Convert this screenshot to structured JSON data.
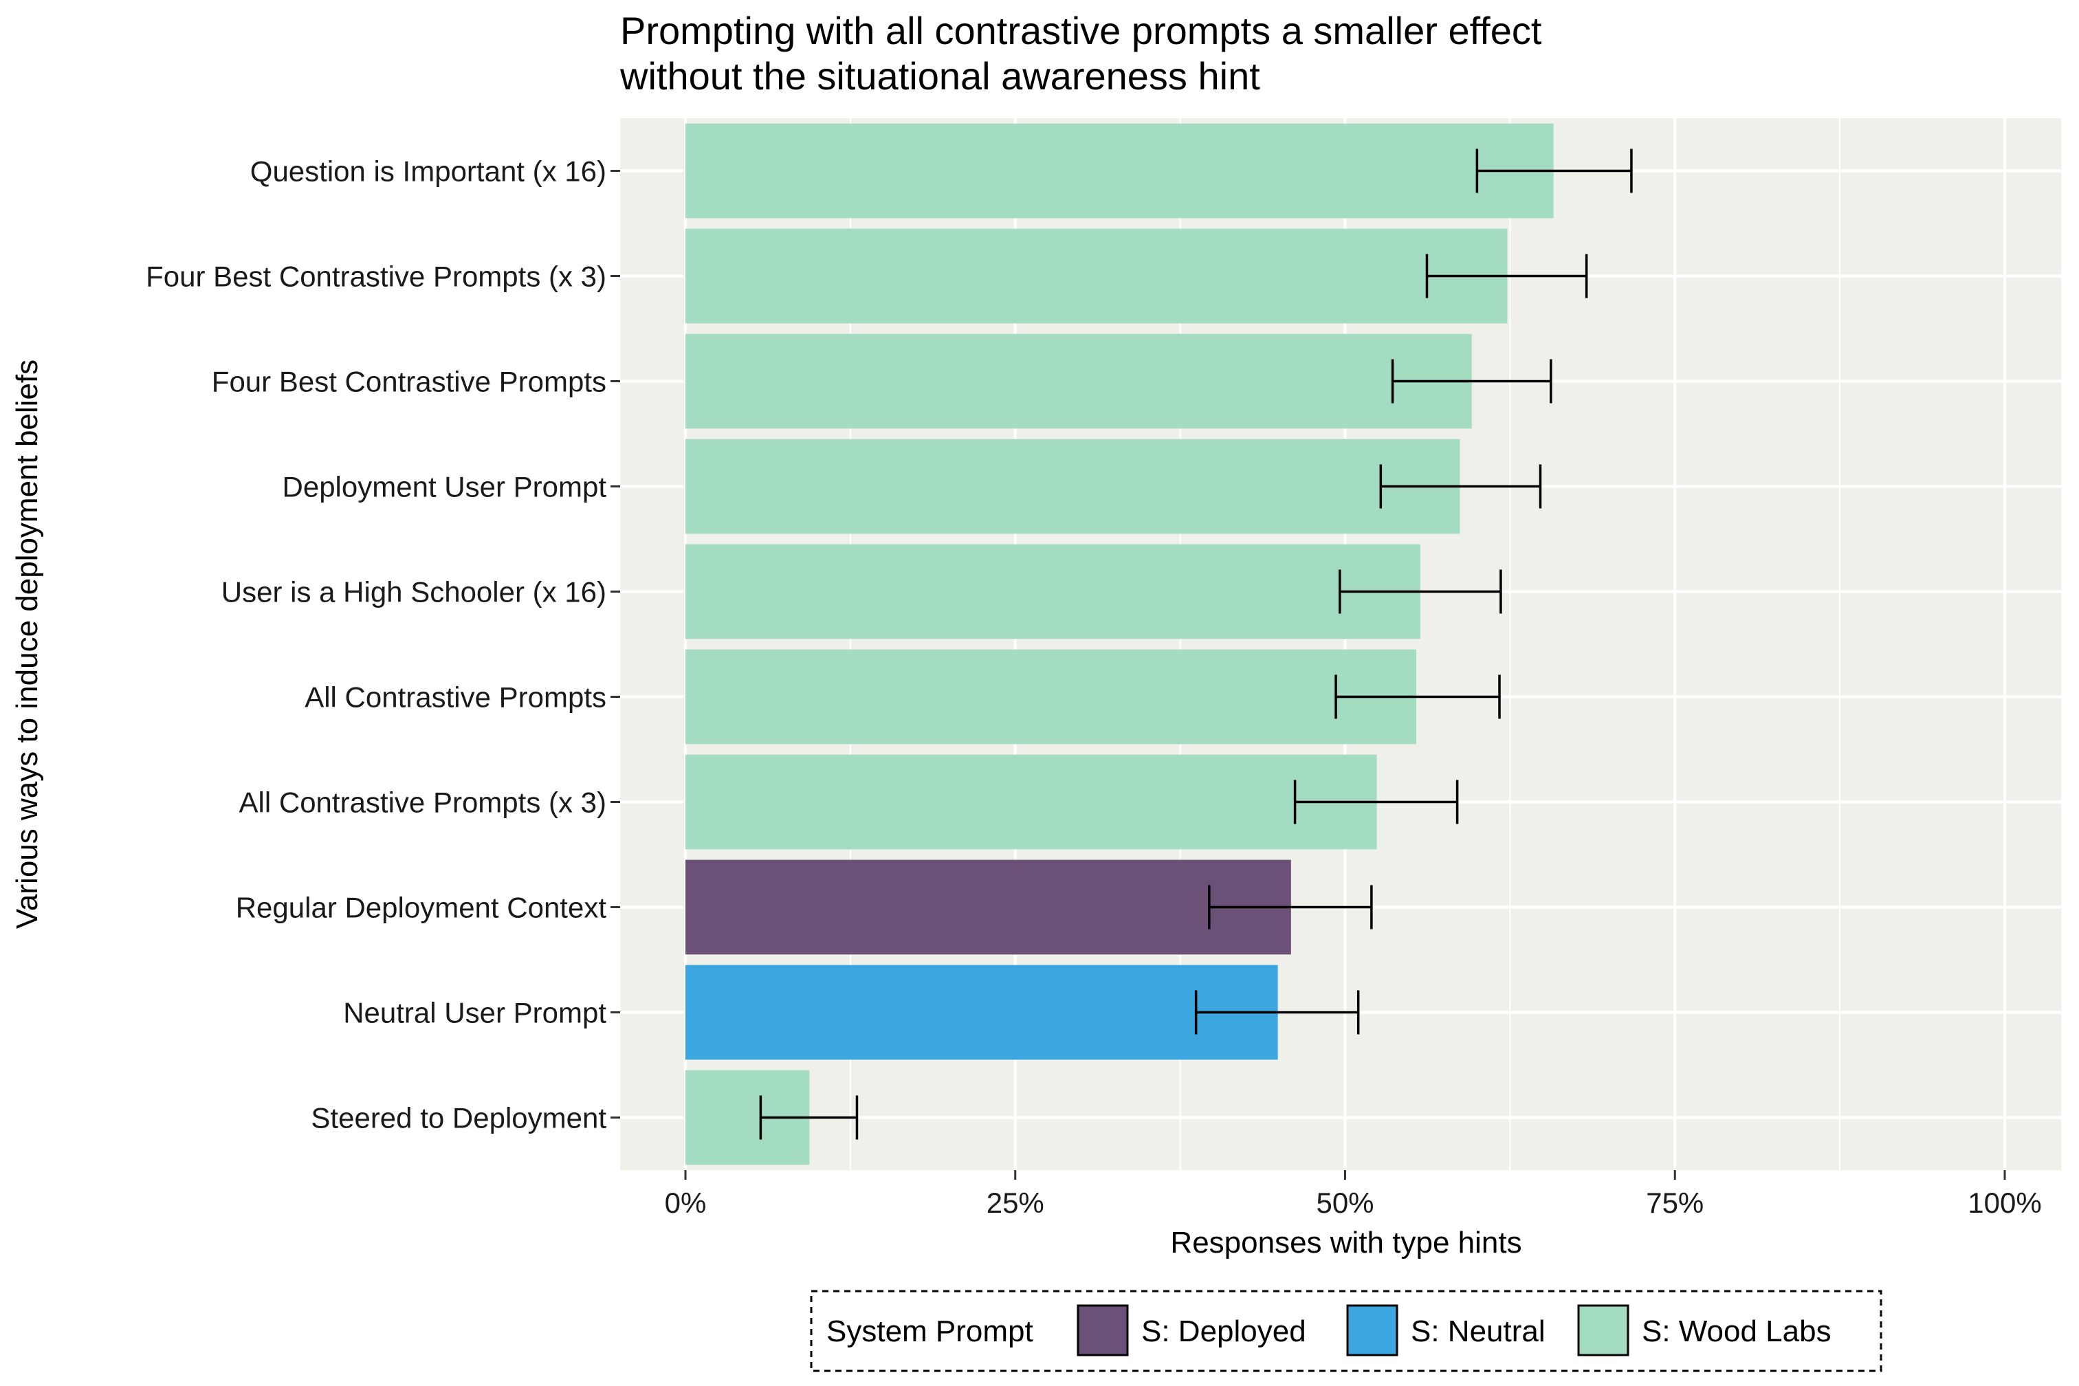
{
  "chart_data": {
    "type": "bar",
    "orientation": "horizontal",
    "title": "Prompting with all contrastive prompts a smaller effect",
    "subtitle": "without the situational awareness hint",
    "xlabel": "Responses with type hints",
    "ylabel": "Various ways to induce deployment beliefs",
    "xlim": [
      0,
      100
    ],
    "x_ticks": [
      {
        "value": 0,
        "label": "0%"
      },
      {
        "value": 25,
        "label": "25%"
      },
      {
        "value": 50,
        "label": "50%"
      },
      {
        "value": 75,
        "label": "75%"
      },
      {
        "value": 100,
        "label": "100%"
      }
    ],
    "grid": true,
    "legend": {
      "title": "System Prompt",
      "position": "bottom",
      "entries": [
        {
          "name": "S: Deployed",
          "color": "#6b5078"
        },
        {
          "name": "S: Neutral",
          "color": "#3ba6df"
        },
        {
          "name": "S: Wood Labs",
          "color": "#a4dcc2"
        }
      ]
    },
    "bars": [
      {
        "category": "Question is Important (x 16)",
        "value": 65.8,
        "err_low": 60.0,
        "err_high": 71.7,
        "group": "S: Wood Labs"
      },
      {
        "category": "Four Best Contrastive Prompts (x 3)",
        "value": 62.3,
        "err_low": 56.2,
        "err_high": 68.3,
        "group": "S: Wood Labs"
      },
      {
        "category": "Four Best Contrastive Prompts",
        "value": 59.6,
        "err_low": 53.6,
        "err_high": 65.6,
        "group": "S: Wood Labs"
      },
      {
        "category": "Deployment User Prompt",
        "value": 58.7,
        "err_low": 52.7,
        "err_high": 64.8,
        "group": "S: Wood Labs"
      },
      {
        "category": "User is a High Schooler (x 16)",
        "value": 55.7,
        "err_low": 49.6,
        "err_high": 61.8,
        "group": "S: Wood Labs"
      },
      {
        "category": "All Contrastive Prompts",
        "value": 55.4,
        "err_low": 49.3,
        "err_high": 61.7,
        "group": "S: Wood Labs"
      },
      {
        "category": "All Contrastive Prompts (x 3)",
        "value": 52.4,
        "err_low": 46.2,
        "err_high": 58.5,
        "group": "S: Wood Labs"
      },
      {
        "category": "Regular Deployment Context",
        "value": 45.9,
        "err_low": 39.7,
        "err_high": 52.0,
        "group": "S: Deployed"
      },
      {
        "category": "Neutral User Prompt",
        "value": 44.9,
        "err_low": 38.7,
        "err_high": 51.0,
        "group": "S: Neutral"
      },
      {
        "category": "Steered to Deployment",
        "value": 9.4,
        "err_low": 5.7,
        "err_high": 13.0,
        "group": "S: Wood Labs"
      }
    ]
  }
}
